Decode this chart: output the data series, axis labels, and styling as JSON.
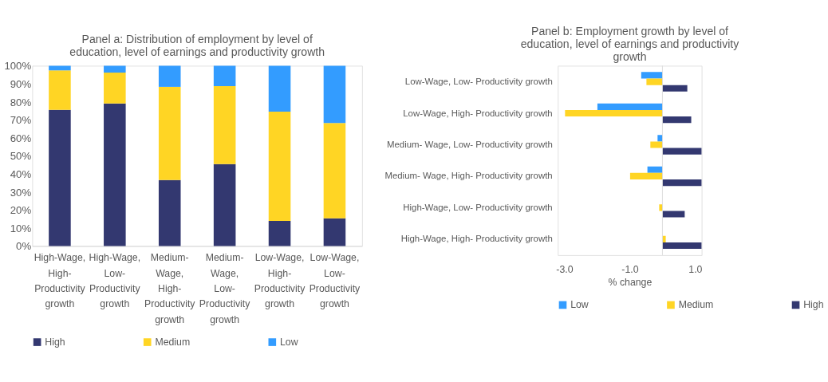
{
  "chart_data": [
    {
      "type": "bar",
      "title": [
        "Panel a: Distribution of employment by level of",
        "education, level of earnings and productivity growth"
      ],
      "categories": [
        "High-Wage, High- Productivity growth",
        "High-Wage, Low- Productivity growth",
        "Medium- Wage, High- Productivity growth",
        "Medium- Wage, Low- Productivity growth",
        "Low-Wage, High- Productivity growth",
        "Low-Wage, Low- Productivity growth"
      ],
      "stacked": true,
      "series": [
        {
          "name": "High",
          "color": "#333870",
          "values": [
            75.5,
            79.1,
            36.6,
            45.5,
            14.0,
            15.4
          ]
        },
        {
          "name": "Medium",
          "color": "#ffd524",
          "values": [
            21.9,
            17.1,
            51.7,
            43.2,
            60.5,
            52.8
          ]
        },
        {
          "name": "Low",
          "color": "#339cff",
          "values": [
            2.6,
            3.8,
            11.7,
            11.3,
            25.5,
            31.8
          ]
        }
      ],
      "ylim": [
        0,
        100
      ],
      "yticks": [
        {
          "value": 0,
          "label": "0%"
        },
        {
          "value": 10,
          "label": "10%"
        },
        {
          "value": 20,
          "label": "20%"
        },
        {
          "value": 30,
          "label": "30%"
        },
        {
          "value": 40,
          "label": "40%"
        },
        {
          "value": 50,
          "label": "50%"
        },
        {
          "value": 60,
          "label": "60%"
        },
        {
          "value": 70,
          "label": "70%"
        },
        {
          "value": 80,
          "label": "80%"
        },
        {
          "value": 90,
          "label": "90%"
        },
        {
          "value": 100,
          "label": "100%"
        }
      ],
      "grid": false,
      "legend": "bottom"
    },
    {
      "type": "bar",
      "orientation": "horizontal",
      "title": [
        "Panel b: Employment growth by level of",
        "education, level of earnings and productivity",
        "growth"
      ],
      "categories": [
        "Low-Wage, Low- Productivity growth",
        "Low-Wage, High- Productivity growth",
        "Medium- Wage, Low- Productivity growth",
        "Medium- Wage, High- Productivity growth",
        "High-Wage, Low- Productivity growth",
        "High-Wage, High- Productivity growth"
      ],
      "xlabel": "% change",
      "series": [
        {
          "name": "Low",
          "color": "#339cff",
          "values": [
            -0.65,
            -1.99,
            -0.15,
            -0.46,
            null,
            null
          ]
        },
        {
          "name": "Medium",
          "color": "#ffd524",
          "values": [
            -0.49,
            -2.98,
            -0.37,
            -0.99,
            -0.1,
            0.1
          ]
        },
        {
          "name": "High",
          "color": "#333870",
          "values": [
            0.76,
            0.88,
            1.2,
            1.2,
            0.68,
            1.2
          ]
        }
      ],
      "xlim": [
        -3.2,
        1.2
      ],
      "xticks": [
        {
          "value": -3,
          "label": "-3.0"
        },
        {
          "value": -1,
          "label": "-1.0"
        },
        {
          "value": 1,
          "label": "1.0"
        }
      ],
      "ref_lines": [
        {
          "axis": "x",
          "value": 0,
          "color": "#d9d9d9"
        }
      ],
      "grid": false,
      "legend": "bottom"
    }
  ]
}
